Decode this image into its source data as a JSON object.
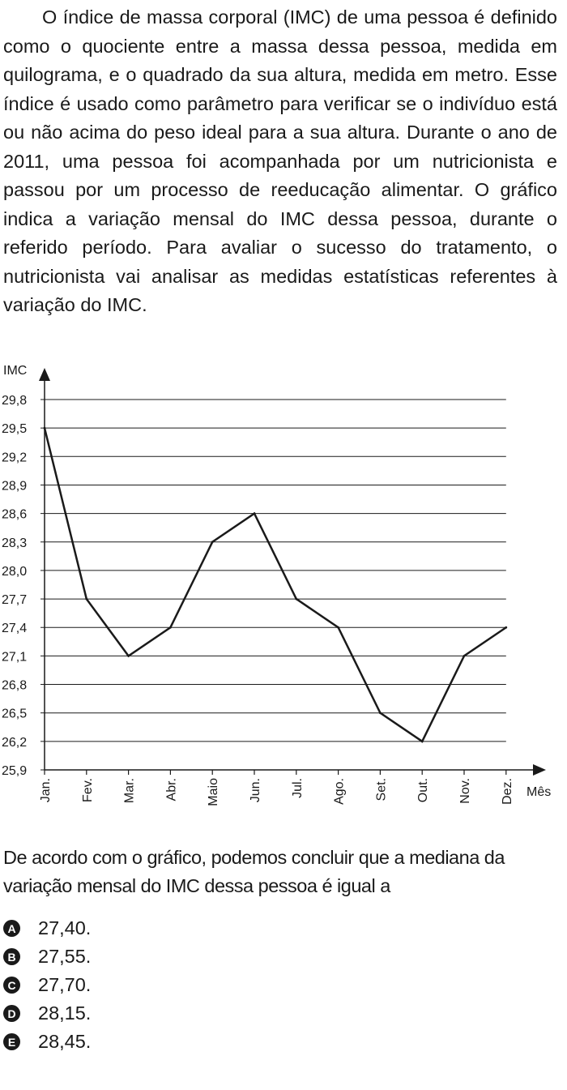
{
  "intro": {
    "text": "O índice de massa corporal (IMC) de uma pessoa é definido como o quociente entre a massa dessa pessoa, medida em quilograma, e o quadrado da sua altura, medida em metro. Esse índice é usado como parâmetro para verificar se o indivíduo está ou não acima do peso ideal para a sua altura. Durante o ano de 2011, uma pessoa foi acompanhada por um nutricionista e passou por um processo de reeducação alimentar. O gráfico indica a variação mensal do IMC dessa pessoa, durante o referido período. Para avaliar o sucesso do tratamento, o nutricionista vai analisar as medidas estatísticas referentes à variação do IMC."
  },
  "chart_data": {
    "type": "line",
    "title": "",
    "xlabel": "Mês",
    "ylabel": "IMC",
    "categories": [
      "Jan.",
      "Fev.",
      "Mar.",
      "Abr.",
      "Maio",
      "Jun.",
      "Jul.",
      "Ago.",
      "Set.",
      "Out.",
      "Nov.",
      "Dez."
    ],
    "values": [
      29.5,
      27.7,
      27.1,
      27.4,
      28.3,
      28.6,
      27.7,
      27.4,
      26.5,
      26.2,
      27.1,
      27.4
    ],
    "yticks": [
      "25,9",
      "26,2",
      "26,5",
      "26,8",
      "27,1",
      "27,4",
      "27,7",
      "28,0",
      "28,3",
      "28,6",
      "28,9",
      "29,2",
      "29,5",
      "29,8"
    ],
    "ylim": [
      25.9,
      29.8
    ],
    "grid": true,
    "line_color": "#1a1a1a"
  },
  "question": {
    "text": "De acordo com o gráfico, podemos concluir que a mediana da variação mensal do IMC dessa pessoa é igual a"
  },
  "options": [
    {
      "letter": "A",
      "text": "27,40."
    },
    {
      "letter": "B",
      "text": "27,55."
    },
    {
      "letter": "C",
      "text": "27,70."
    },
    {
      "letter": "D",
      "text": "28,15."
    },
    {
      "letter": "E",
      "text": "28,45."
    }
  ]
}
